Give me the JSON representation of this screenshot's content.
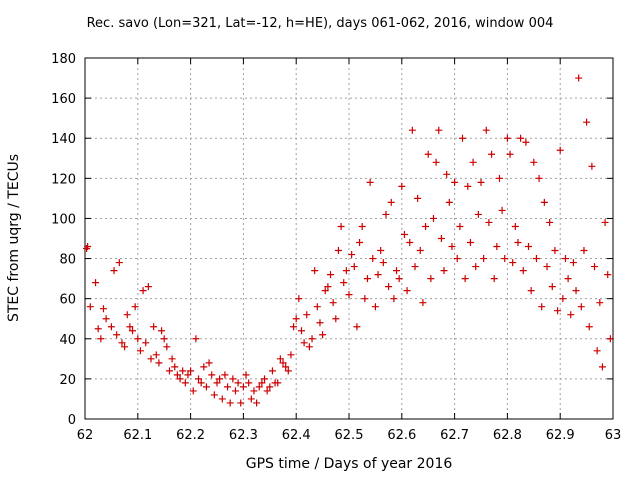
{
  "chart_data": {
    "type": "scatter",
    "title": "Rec. savo (Lon=321, Lat=-12, h=HE), days 061-062, 2016, window 004",
    "xlabel": "GPS time / Days of year 2016",
    "ylabel": "STEC from uqrg / TECUs",
    "xlim": [
      62,
      63
    ],
    "ylim": [
      0,
      180
    ],
    "x_ticks": [
      62,
      62.1,
      62.2,
      62.3,
      62.4,
      62.5,
      62.6,
      62.7,
      62.8,
      62.9,
      63
    ],
    "x_tick_labels": [
      "62",
      "62.1",
      "62.2",
      "62.3",
      "62.4",
      "62.5",
      "62.6",
      "62.7",
      "62.8",
      "62.9",
      "63"
    ],
    "y_ticks": [
      0,
      20,
      40,
      60,
      80,
      100,
      120,
      140,
      160,
      180
    ],
    "y_tick_labels": [
      "0",
      "20",
      "40",
      "60",
      "80",
      "100",
      "120",
      "140",
      "160",
      "180"
    ],
    "grid": true,
    "marker": "plus",
    "color": "#cc0000",
    "series": [
      {
        "values": [
          [
            62.003,
            85
          ],
          [
            62.005,
            86
          ],
          [
            62.01,
            56
          ],
          [
            62.02,
            68
          ],
          [
            62.025,
            45
          ],
          [
            62.03,
            40
          ],
          [
            62.035,
            55
          ],
          [
            62.04,
            50
          ],
          [
            62.05,
            46
          ],
          [
            62.055,
            74
          ],
          [
            62.06,
            42
          ],
          [
            62.065,
            78
          ],
          [
            62.07,
            38
          ],
          [
            62.075,
            36
          ],
          [
            62.08,
            52
          ],
          [
            62.085,
            46
          ],
          [
            62.09,
            44
          ],
          [
            62.095,
            56
          ],
          [
            62.1,
            40
          ],
          [
            62.105,
            34
          ],
          [
            62.11,
            64
          ],
          [
            62.115,
            38
          ],
          [
            62.12,
            66
          ],
          [
            62.125,
            30
          ],
          [
            62.13,
            46
          ],
          [
            62.135,
            32
          ],
          [
            62.14,
            28
          ],
          [
            62.145,
            44
          ],
          [
            62.15,
            40
          ],
          [
            62.155,
            36
          ],
          [
            62.16,
            24
          ],
          [
            62.165,
            30
          ],
          [
            62.17,
            26
          ],
          [
            62.175,
            22
          ],
          [
            62.18,
            20
          ],
          [
            62.185,
            24
          ],
          [
            62.19,
            18
          ],
          [
            62.195,
            22
          ],
          [
            62.2,
            24
          ],
          [
            62.205,
            14
          ],
          [
            62.21,
            40
          ],
          [
            62.215,
            20
          ],
          [
            62.22,
            18
          ],
          [
            62.225,
            26
          ],
          [
            62.23,
            16
          ],
          [
            62.235,
            28
          ],
          [
            62.24,
            22
          ],
          [
            62.245,
            12
          ],
          [
            62.25,
            18
          ],
          [
            62.255,
            20
          ],
          [
            62.26,
            10
          ],
          [
            62.265,
            22
          ],
          [
            62.27,
            16
          ],
          [
            62.275,
            8
          ],
          [
            62.28,
            20
          ],
          [
            62.285,
            14
          ],
          [
            62.29,
            18
          ],
          [
            62.295,
            8
          ],
          [
            62.3,
            16
          ],
          [
            62.305,
            22
          ],
          [
            62.31,
            18
          ],
          [
            62.315,
            10
          ],
          [
            62.32,
            14
          ],
          [
            62.325,
            8
          ],
          [
            62.33,
            16
          ],
          [
            62.335,
            18
          ],
          [
            62.34,
            20
          ],
          [
            62.345,
            14
          ],
          [
            62.35,
            16
          ],
          [
            62.355,
            24
          ],
          [
            62.36,
            18
          ],
          [
            62.365,
            18
          ],
          [
            62.37,
            30
          ],
          [
            62.375,
            28
          ],
          [
            62.38,
            26
          ],
          [
            62.385,
            24
          ],
          [
            62.39,
            32
          ],
          [
            62.395,
            46
          ],
          [
            62.4,
            50
          ],
          [
            62.405,
            60
          ],
          [
            62.41,
            44
          ],
          [
            62.415,
            38
          ],
          [
            62.42,
            52
          ],
          [
            62.425,
            36
          ],
          [
            62.43,
            40
          ],
          [
            62.435,
            74
          ],
          [
            62.44,
            56
          ],
          [
            62.445,
            48
          ],
          [
            62.45,
            42
          ],
          [
            62.455,
            64
          ],
          [
            62.46,
            66
          ],
          [
            62.465,
            72
          ],
          [
            62.47,
            58
          ],
          [
            62.475,
            50
          ],
          [
            62.48,
            84
          ],
          [
            62.485,
            96
          ],
          [
            62.49,
            68
          ],
          [
            62.495,
            74
          ],
          [
            62.5,
            62
          ],
          [
            62.505,
            82
          ],
          [
            62.51,
            76
          ],
          [
            62.515,
            46
          ],
          [
            62.52,
            88
          ],
          [
            62.525,
            96
          ],
          [
            62.53,
            60
          ],
          [
            62.535,
            70
          ],
          [
            62.54,
            118
          ],
          [
            62.545,
            80
          ],
          [
            62.55,
            56
          ],
          [
            62.555,
            72
          ],
          [
            62.56,
            84
          ],
          [
            62.565,
            78
          ],
          [
            62.57,
            102
          ],
          [
            62.575,
            66
          ],
          [
            62.58,
            108
          ],
          [
            62.585,
            60
          ],
          [
            62.59,
            74
          ],
          [
            62.595,
            70
          ],
          [
            62.6,
            116
          ],
          [
            62.605,
            92
          ],
          [
            62.61,
            64
          ],
          [
            62.615,
            88
          ],
          [
            62.62,
            144
          ],
          [
            62.625,
            76
          ],
          [
            62.63,
            110
          ],
          [
            62.635,
            84
          ],
          [
            62.64,
            58
          ],
          [
            62.645,
            96
          ],
          [
            62.65,
            132
          ],
          [
            62.655,
            70
          ],
          [
            62.66,
            100
          ],
          [
            62.665,
            128
          ],
          [
            62.67,
            144
          ],
          [
            62.675,
            90
          ],
          [
            62.68,
            74
          ],
          [
            62.685,
            122
          ],
          [
            62.69,
            108
          ],
          [
            62.695,
            86
          ],
          [
            62.7,
            118
          ],
          [
            62.705,
            80
          ],
          [
            62.71,
            96
          ],
          [
            62.715,
            140
          ],
          [
            62.72,
            70
          ],
          [
            62.725,
            116
          ],
          [
            62.73,
            88
          ],
          [
            62.735,
            128
          ],
          [
            62.74,
            76
          ],
          [
            62.745,
            102
          ],
          [
            62.75,
            118
          ],
          [
            62.755,
            80
          ],
          [
            62.76,
            144
          ],
          [
            62.765,
            98
          ],
          [
            62.77,
            132
          ],
          [
            62.775,
            70
          ],
          [
            62.78,
            86
          ],
          [
            62.785,
            120
          ],
          [
            62.79,
            104
          ],
          [
            62.795,
            80
          ],
          [
            62.8,
            140
          ],
          [
            62.805,
            132
          ],
          [
            62.81,
            78
          ],
          [
            62.815,
            96
          ],
          [
            62.82,
            88
          ],
          [
            62.825,
            140
          ],
          [
            62.83,
            74
          ],
          [
            62.835,
            138
          ],
          [
            62.84,
            86
          ],
          [
            62.845,
            64
          ],
          [
            62.85,
            128
          ],
          [
            62.855,
            80
          ],
          [
            62.86,
            120
          ],
          [
            62.865,
            56
          ],
          [
            62.87,
            108
          ],
          [
            62.875,
            76
          ],
          [
            62.88,
            98
          ],
          [
            62.885,
            66
          ],
          [
            62.89,
            84
          ],
          [
            62.895,
            54
          ],
          [
            62.9,
            134
          ],
          [
            62.905,
            60
          ],
          [
            62.91,
            80
          ],
          [
            62.915,
            70
          ],
          [
            62.92,
            52
          ],
          [
            62.925,
            78
          ],
          [
            62.93,
            64
          ],
          [
            62.935,
            170
          ],
          [
            62.94,
            56
          ],
          [
            62.945,
            84
          ],
          [
            62.95,
            148
          ],
          [
            62.955,
            46
          ],
          [
            62.96,
            126
          ],
          [
            62.965,
            76
          ],
          [
            62.97,
            34
          ],
          [
            62.975,
            58
          ],
          [
            62.98,
            26
          ],
          [
            62.985,
            98
          ],
          [
            62.99,
            72
          ],
          [
            62.995,
            40
          ]
        ]
      }
    ]
  }
}
